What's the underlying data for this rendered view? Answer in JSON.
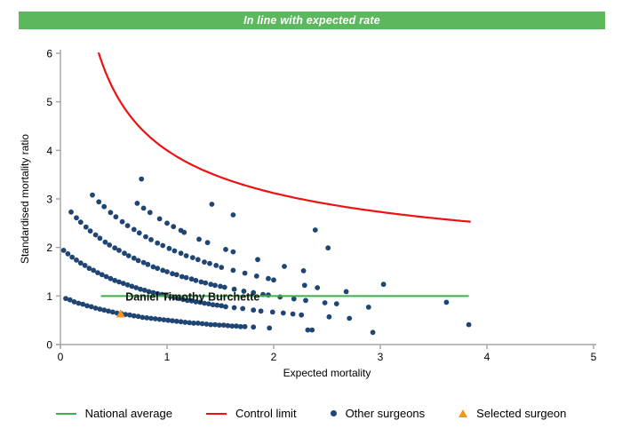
{
  "banner": {
    "text": "In line with expected rate",
    "bg_color": "#5cb85c",
    "text_color": "#ffffff"
  },
  "chart_data": {
    "type": "scatter",
    "title": "",
    "xlabel": "Expected mortality",
    "ylabel": "Standardised mortality ratio",
    "xlim": [
      0,
      5
    ],
    "ylim": [
      0,
      6
    ],
    "x_ticks": [
      0,
      1,
      2,
      3,
      4,
      5
    ],
    "y_ticks": [
      0,
      1,
      2,
      3,
      4,
      5,
      6
    ],
    "grid": false,
    "axis_color": "#a3a3a3",
    "national_average": {
      "y": 1,
      "x_start": 0.38,
      "x_end": 3.83,
      "color": "#3fae49"
    },
    "control_limit": {
      "formula": "SMR = 1 + 3/sqrt(E)",
      "base": 1,
      "coef": 3,
      "power": -0.5,
      "x_start": 0.36,
      "x_end": 3.84,
      "color": "#ee1111"
    },
    "annotation": {
      "text": "Daniel Timothy Burchette",
      "x": 1.24,
      "y": 1.0
    },
    "selected_surgeon": {
      "x": 0.565,
      "y": 0.635,
      "color": "#f7941e"
    },
    "other_surgeons": {
      "color": "#1e4573",
      "bands": [
        {
          "deaths": 1,
          "points": [
            [
              0.05,
              0.95
            ],
            [
              0.09,
              0.92
            ],
            [
              0.13,
              0.88
            ],
            [
              0.17,
              0.85
            ],
            [
              0.21,
              0.83
            ],
            [
              0.25,
              0.8
            ],
            [
              0.29,
              0.78
            ],
            [
              0.33,
              0.75
            ],
            [
              0.37,
              0.73
            ],
            [
              0.41,
              0.71
            ],
            [
              0.45,
              0.69
            ],
            [
              0.49,
              0.67
            ],
            [
              0.53,
              0.65
            ],
            [
              0.57,
              0.64
            ],
            [
              0.61,
              0.62
            ],
            [
              0.65,
              0.61
            ],
            [
              0.69,
              0.59
            ],
            [
              0.73,
              0.58
            ],
            [
              0.77,
              0.56
            ],
            [
              0.81,
              0.55
            ],
            [
              0.85,
              0.54
            ],
            [
              0.89,
              0.53
            ],
            [
              0.93,
              0.52
            ],
            [
              0.97,
              0.51
            ],
            [
              1.01,
              0.5
            ],
            [
              1.05,
              0.49
            ],
            [
              1.09,
              0.48
            ],
            [
              1.13,
              0.47
            ],
            [
              1.17,
              0.46
            ],
            [
              1.21,
              0.45
            ],
            [
              1.25,
              0.44
            ],
            [
              1.29,
              0.44
            ],
            [
              1.33,
              0.43
            ],
            [
              1.37,
              0.42
            ],
            [
              1.41,
              0.41
            ],
            [
              1.45,
              0.41
            ],
            [
              1.49,
              0.4
            ],
            [
              1.53,
              0.4
            ],
            [
              1.57,
              0.39
            ],
            [
              1.61,
              0.38
            ],
            [
              1.65,
              0.38
            ],
            [
              1.69,
              0.37
            ],
            [
              1.73,
              0.37
            ],
            [
              1.81,
              0.36
            ],
            [
              1.96,
              0.34
            ],
            [
              2.32,
              0.3
            ],
            [
              2.36,
              0.3
            ],
            [
              2.93,
              0.25
            ]
          ]
        },
        {
          "deaths": 2,
          "points": [
            [
              0.03,
              1.94
            ],
            [
              0.07,
              1.87
            ],
            [
              0.11,
              1.8
            ],
            [
              0.15,
              1.74
            ],
            [
              0.19,
              1.68
            ],
            [
              0.23,
              1.63
            ],
            [
              0.27,
              1.57
            ],
            [
              0.31,
              1.53
            ],
            [
              0.35,
              1.48
            ],
            [
              0.39,
              1.44
            ],
            [
              0.43,
              1.4
            ],
            [
              0.47,
              1.36
            ],
            [
              0.51,
              1.32
            ],
            [
              0.55,
              1.29
            ],
            [
              0.59,
              1.26
            ],
            [
              0.63,
              1.23
            ],
            [
              0.67,
              1.2
            ],
            [
              0.71,
              1.17
            ],
            [
              0.75,
              1.14
            ],
            [
              0.79,
              1.12
            ],
            [
              0.83,
              1.09
            ],
            [
              0.87,
              1.07
            ],
            [
              0.91,
              1.05
            ],
            [
              0.95,
              1.03
            ],
            [
              0.99,
              1.01
            ],
            [
              1.03,
              0.99
            ],
            [
              1.07,
              0.97
            ],
            [
              1.11,
              0.95
            ],
            [
              1.15,
              0.93
            ],
            [
              1.19,
              0.91
            ],
            [
              1.23,
              0.9
            ],
            [
              1.27,
              0.88
            ],
            [
              1.31,
              0.87
            ],
            [
              1.35,
              0.85
            ],
            [
              1.39,
              0.84
            ],
            [
              1.43,
              0.82
            ],
            [
              1.47,
              0.81
            ],
            [
              1.51,
              0.8
            ],
            [
              1.55,
              0.78
            ],
            [
              1.63,
              0.76
            ],
            [
              1.71,
              0.74
            ],
            [
              1.81,
              0.71
            ],
            [
              1.88,
              0.69
            ],
            [
              1.99,
              0.67
            ],
            [
              2.09,
              0.65
            ],
            [
              2.18,
              0.63
            ],
            [
              2.26,
              0.61
            ],
            [
              2.52,
              0.57
            ],
            [
              2.71,
              0.54
            ],
            [
              3.83,
              0.41
            ]
          ]
        },
        {
          "deaths": 3,
          "points": [
            [
              0.1,
              2.73
            ],
            [
              0.15,
              2.61
            ],
            [
              0.19,
              2.52
            ],
            [
              0.24,
              2.42
            ],
            [
              0.28,
              2.34
            ],
            [
              0.33,
              2.26
            ],
            [
              0.37,
              2.19
            ],
            [
              0.42,
              2.11
            ],
            [
              0.46,
              2.05
            ],
            [
              0.51,
              1.99
            ],
            [
              0.55,
              1.94
            ],
            [
              0.6,
              1.88
            ],
            [
              0.64,
              1.83
            ],
            [
              0.69,
              1.78
            ],
            [
              0.73,
              1.73
            ],
            [
              0.78,
              1.69
            ],
            [
              0.82,
              1.65
            ],
            [
              0.87,
              1.6
            ],
            [
              0.91,
              1.57
            ],
            [
              0.96,
              1.53
            ],
            [
              1.0,
              1.5
            ],
            [
              1.05,
              1.46
            ],
            [
              1.09,
              1.44
            ],
            [
              1.14,
              1.4
            ],
            [
              1.18,
              1.38
            ],
            [
              1.23,
              1.35
            ],
            [
              1.27,
              1.32
            ],
            [
              1.32,
              1.29
            ],
            [
              1.36,
              1.27
            ],
            [
              1.41,
              1.24
            ],
            [
              1.45,
              1.22
            ],
            [
              1.5,
              1.2
            ],
            [
              1.54,
              1.18
            ],
            [
              1.63,
              1.14
            ],
            [
              1.72,
              1.1
            ],
            [
              1.81,
              1.07
            ],
            [
              1.9,
              1.03
            ],
            [
              1.95,
              1.02
            ],
            [
              2.06,
              0.98
            ],
            [
              2.19,
              0.94
            ],
            [
              2.3,
              0.91
            ],
            [
              2.48,
              0.86
            ],
            [
              2.59,
              0.84
            ],
            [
              2.89,
              0.77
            ]
          ]
        },
        {
          "deaths": 4,
          "points": [
            [
              0.3,
              3.08
            ],
            [
              0.36,
              2.94
            ],
            [
              0.41,
              2.84
            ],
            [
              0.47,
              2.72
            ],
            [
              0.52,
              2.63
            ],
            [
              0.58,
              2.53
            ],
            [
              0.63,
              2.45
            ],
            [
              0.69,
              2.37
            ],
            [
              0.74,
              2.3
            ],
            [
              0.8,
              2.22
            ],
            [
              0.85,
              2.16
            ],
            [
              0.91,
              2.09
            ],
            [
              0.96,
              2.04
            ],
            [
              1.02,
              1.98
            ],
            [
              1.07,
              1.93
            ],
            [
              1.13,
              1.88
            ],
            [
              1.18,
              1.83
            ],
            [
              1.24,
              1.79
            ],
            [
              1.29,
              1.75
            ],
            [
              1.35,
              1.7
            ],
            [
              1.4,
              1.67
            ],
            [
              1.46,
              1.63
            ],
            [
              1.51,
              1.59
            ],
            [
              1.62,
              1.53
            ],
            [
              1.73,
              1.47
            ],
            [
              1.84,
              1.41
            ],
            [
              1.95,
              1.36
            ],
            [
              2.0,
              1.33
            ],
            [
              2.29,
              1.22
            ],
            [
              2.41,
              1.17
            ],
            [
              2.68,
              1.09
            ],
            [
              3.62,
              0.87
            ]
          ]
        },
        {
          "deaths": 5,
          "points": [
            [
              0.72,
              2.91
            ],
            [
              0.78,
              2.81
            ],
            [
              0.84,
              2.72
            ],
            [
              0.93,
              2.59
            ],
            [
              1.0,
              2.5
            ],
            [
              1.06,
              2.43
            ],
            [
              1.13,
              2.35
            ],
            [
              1.16,
              2.31
            ],
            [
              1.3,
              2.17
            ],
            [
              1.38,
              2.1
            ],
            [
              1.55,
              1.96
            ],
            [
              1.62,
              1.91
            ],
            [
              1.85,
              1.75
            ],
            [
              2.1,
              1.61
            ],
            [
              2.28,
              1.52
            ],
            [
              3.03,
              1.24
            ]
          ]
        },
        {
          "deaths": 6,
          "points": [
            [
              0.76,
              3.41
            ]
          ]
        },
        {
          "deaths": 7,
          "points": [
            [
              1.42,
              2.89
            ],
            [
              1.62,
              2.67
            ],
            [
              2.51,
              1.99
            ]
          ]
        },
        {
          "deaths": 8,
          "points": [
            [
              2.39,
              2.36
            ]
          ]
        }
      ]
    },
    "legend": [
      {
        "label": "National average",
        "marker": "line",
        "color": "#3fae49"
      },
      {
        "label": "Control limit",
        "marker": "line",
        "color": "#ee1111"
      },
      {
        "label": "Other surgeons",
        "marker": "dot",
        "color": "#1e4573"
      },
      {
        "label": "Selected surgeon",
        "marker": "triangle",
        "color": "#f7941e"
      }
    ]
  }
}
